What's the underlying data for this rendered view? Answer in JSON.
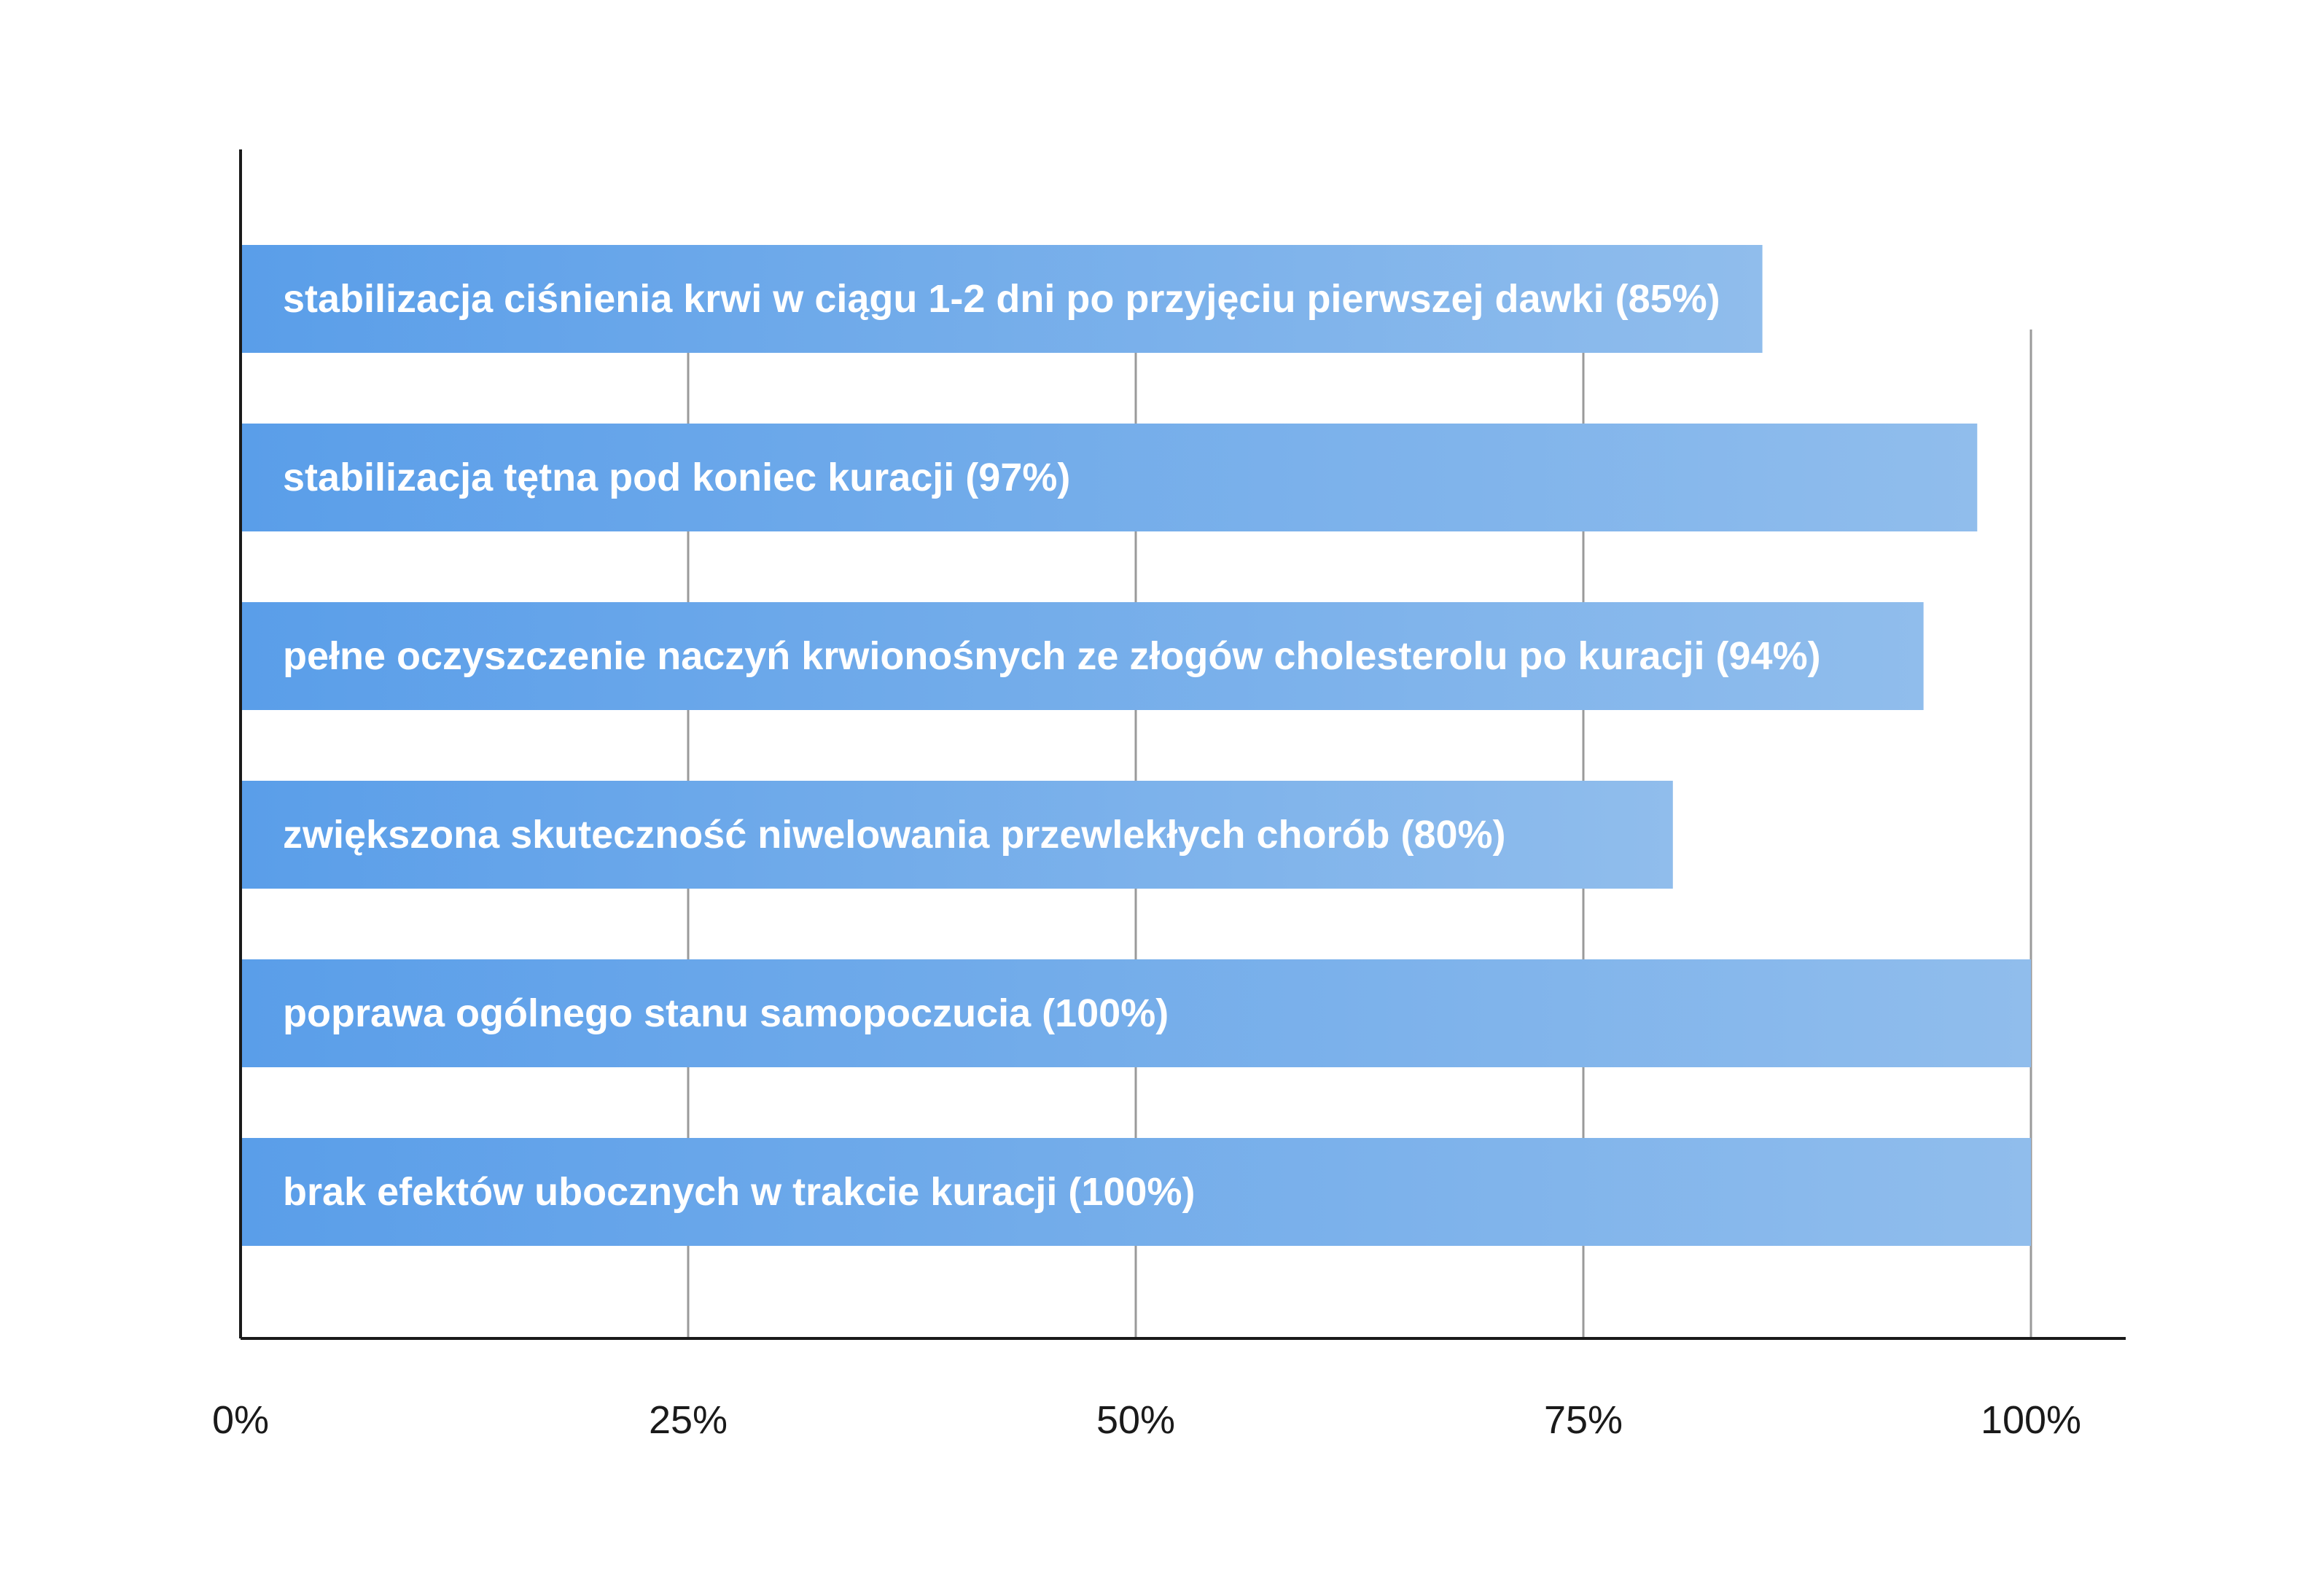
{
  "chart_data": {
    "type": "bar",
    "orientation": "horizontal",
    "title": "",
    "xlabel": "",
    "ylabel": "",
    "xlim": [
      0,
      100
    ],
    "x_ticks": [
      "0%",
      "25%",
      "50%",
      "75%",
      "100%"
    ],
    "x_tick_values": [
      0,
      25,
      50,
      75,
      100
    ],
    "grid": true,
    "legend": "none",
    "bar_color_start": "#5a9ee9",
    "bar_color_end": "#90bdec",
    "categories": [
      "stabilizacja ciśnienia krwi w ciągu 1-2 dni po przyjęciu pierwszej dawki (85%)",
      "stabilizacja tętna pod koniec kuracji (97%)",
      "pełne oczyszczenie naczyń krwionośnych ze złogów cholesterolu po kuracji  (94%)",
      "zwiększona skuteczność niwelowania przewlekłych chorób (80%)",
      "poprawa ogólnego stanu samopoczucia (100%)",
      "brak efektów ubocznych w trakcie kuracji (100%)"
    ],
    "values": [
      85,
      97,
      94,
      80,
      100,
      100
    ]
  }
}
